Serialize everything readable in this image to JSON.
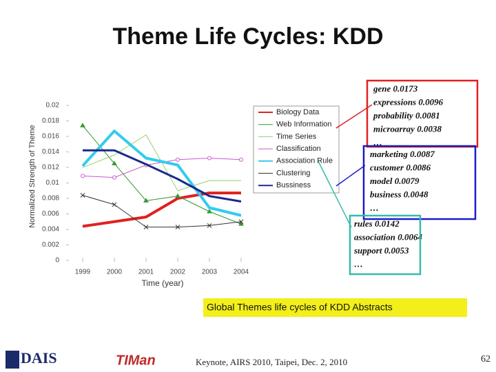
{
  "title": "Theme Life Cycles: KDD",
  "chart_data": {
    "type": "line",
    "x_label": "Time (year)",
    "y_label": "Normalized Strength of Theme",
    "x": [
      1999,
      2000,
      2001,
      2002,
      2003,
      2004
    ],
    "xlim": [
      1999,
      2004
    ],
    "xticks": [
      1999,
      2000,
      2001,
      2002,
      2003,
      2004
    ],
    "ylim": [
      0,
      0.02
    ],
    "yticks": [
      0,
      0.002,
      0.004,
      0.006,
      0.008,
      0.01,
      0.012,
      0.014,
      0.016,
      0.018,
      0.02
    ],
    "series": [
      {
        "name": "Biology Data",
        "color": "#e02020",
        "width": 4,
        "marker": "none",
        "values": [
          0.0044,
          0.005,
          0.0056,
          0.008,
          0.0087,
          0.0087
        ]
      },
      {
        "name": "Web Information",
        "color": "#339933",
        "width": 1,
        "marker": "triangle",
        "values": [
          0.0174,
          0.0125,
          0.0077,
          0.0083,
          0.0063,
          0.0047
        ]
      },
      {
        "name": "Time Series",
        "color": "#99cc66",
        "width": 1,
        "marker": "none",
        "values": [
          0.012,
          0.0136,
          0.0162,
          0.009,
          0.0103,
          0.0103
        ]
      },
      {
        "name": "Classification",
        "color": "#cc55cc",
        "width": 1,
        "marker": "circle",
        "values": [
          0.0109,
          0.0107,
          0.0123,
          0.013,
          0.0132,
          0.013
        ]
      },
      {
        "name": "Association Rule",
        "color": "#33ccee",
        "width": 4,
        "marker": "none",
        "values": [
          0.0122,
          0.0167,
          0.0132,
          0.0123,
          0.0068,
          0.0058
        ]
      },
      {
        "name": "Clustering",
        "color": "#333333",
        "width": 1,
        "marker": "x",
        "values": [
          0.0084,
          0.0072,
          0.0043,
          0.0043,
          0.0045,
          0.005
        ]
      },
      {
        "name": "Bussiness",
        "color": "#1a2a8a",
        "width": 3,
        "marker": "none",
        "values": [
          0.0142,
          0.0142,
          0.0124,
          0.0105,
          0.0083,
          0.0076
        ]
      }
    ]
  },
  "annotations": [
    {
      "color": "#e02020",
      "lines": [
        "gene  0.0173",
        "expressions  0.0096",
        "probability 0.0081",
        "microarray 0.0038",
        "…"
      ]
    },
    {
      "color": "#1a1acc",
      "lines": [
        "marketing  0.0087",
        "customer  0.0086",
        "model 0.0079",
        "business 0.0048",
        "…"
      ]
    },
    {
      "color": "#33bbaa",
      "lines": [
        "rules  0.0142",
        "association  0.0064",
        "support 0.0053",
        "…"
      ]
    }
  ],
  "banner": "Global Themes life cycles of KDD Abstracts",
  "footer": {
    "logo1": "DAIS",
    "logo2": "TIMan",
    "text": "Keynote, AIRS 2010, Taipei, Dec. 2, 2010",
    "page": "62"
  }
}
